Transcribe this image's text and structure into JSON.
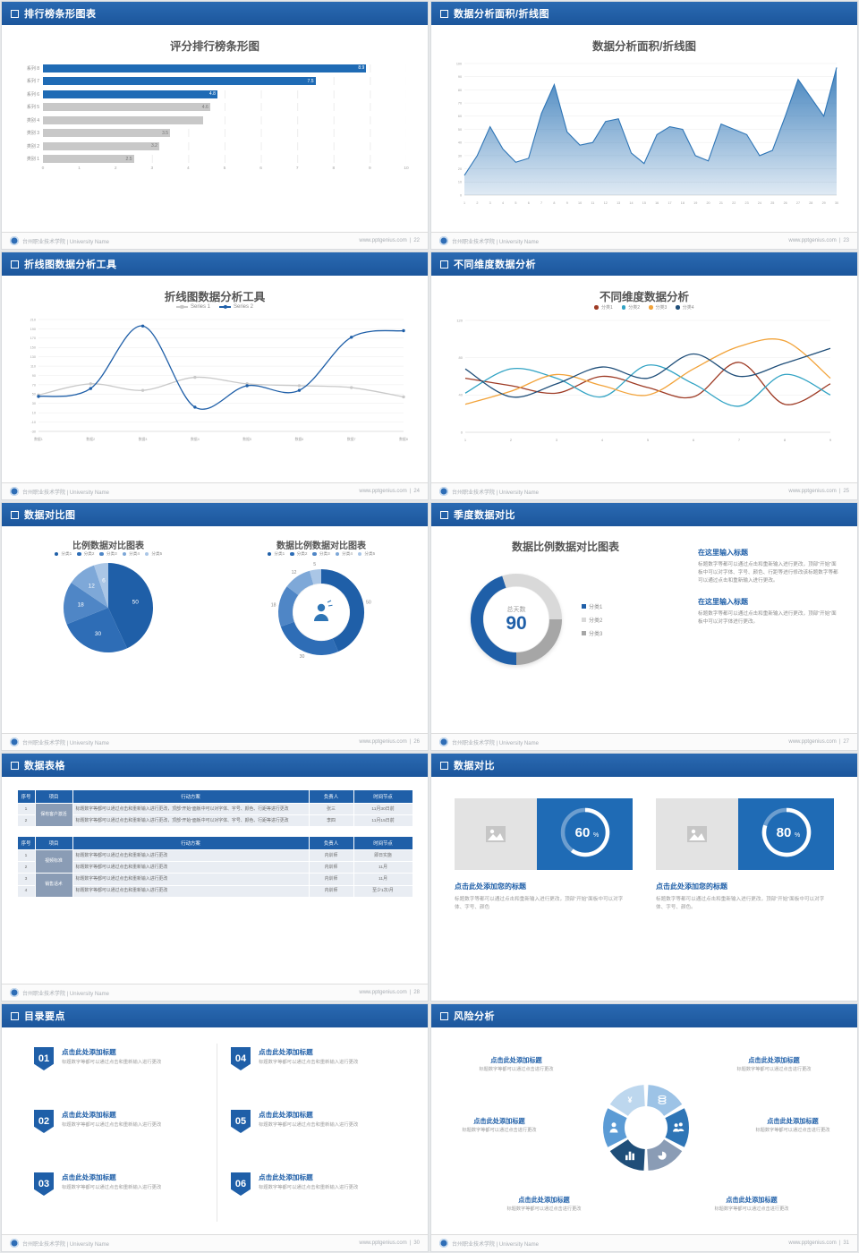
{
  "footer": {
    "school": "台州职业技术学院 | University Name",
    "site": "www.pptgenius.com",
    "divider": "|"
  },
  "slides": [
    {
      "header": "排行榜条形图表",
      "page": "22",
      "chart_data": {
        "type": "bar",
        "orientation": "horizontal",
        "title": "评分排行榜条形图",
        "categories": [
          "系列 8",
          "系列 7",
          "系列 6",
          "系列 5",
          "类别 4",
          "类别 3",
          "类别 2",
          "类别 1"
        ],
        "values": [
          8.9,
          7.5,
          4.8,
          4.6,
          4.4,
          3.5,
          3.2,
          2.5
        ],
        "value_labels": [
          "8.9",
          "7.5",
          "4.8",
          "4.6",
          "",
          "3.5",
          "3.2",
          "2.5"
        ],
        "colors": [
          "#1f6bb5",
          "#1f6bb5",
          "#1f6bb5",
          "#c8c8c8",
          "#c8c8c8",
          "#c8c8c8",
          "#c8c8c8",
          "#c8c8c8"
        ],
        "xlim": [
          0,
          10
        ],
        "xticks": [
          0,
          1,
          2,
          3,
          4,
          5,
          6,
          7,
          8,
          9,
          10
        ]
      }
    },
    {
      "header": "数据分析面积/折线图",
      "page": "23",
      "chart_data": {
        "type": "area",
        "title": "数据分析面积/折线图",
        "x": [
          1,
          2,
          3,
          4,
          5,
          6,
          7,
          8,
          9,
          10,
          11,
          12,
          13,
          14,
          15,
          16,
          17,
          18,
          19,
          20,
          21,
          22,
          23,
          24,
          25,
          26,
          27,
          28,
          29,
          30
        ],
        "values": [
          15,
          30,
          52,
          35,
          25,
          28,
          62,
          84,
          48,
          38,
          40,
          56,
          58,
          32,
          24,
          46,
          52,
          50,
          30,
          26,
          54,
          50,
          46,
          30,
          34,
          60,
          88,
          74,
          60,
          97
        ],
        "ylim": [
          0,
          100
        ],
        "yticks": [
          0,
          10,
          20,
          30,
          40,
          50,
          60,
          70,
          80,
          90,
          100
        ],
        "color": "#2e75b6"
      }
    },
    {
      "header": "折线图数据分析工具",
      "page": "24",
      "chart_data": {
        "type": "line",
        "title": "折线图数据分析工具",
        "categories": [
          "数据1",
          "数据2",
          "数据3",
          "数据4",
          "数据5",
          "数据6",
          "数据7",
          "数据8"
        ],
        "ylim": [
          -30,
          210
        ],
        "yticks": [
          210,
          190,
          170,
          150,
          130,
          110,
          90,
          70,
          50,
          30,
          10,
          -10,
          -30
        ],
        "series": [
          {
            "name": "Series 1",
            "color": "#c9c9c9",
            "values": [
              48,
              72,
              58,
              86,
              72,
              68,
              64,
              44
            ]
          },
          {
            "name": "Series 2",
            "color": "#1f5fa8",
            "values": [
              45,
              62,
              196,
              22,
              68,
              58,
              172,
              186
            ]
          }
        ]
      }
    },
    {
      "header": "不同维度数据分析",
      "page": "25",
      "chart_data": {
        "type": "line",
        "title": "不同维度数据分析",
        "categories": [
          "1",
          "2",
          "3",
          "4",
          "5",
          "6",
          "7",
          "8",
          "9"
        ],
        "ylim": [
          0,
          120
        ],
        "yticks": [
          0,
          40,
          80,
          120
        ],
        "series": [
          {
            "name": "分类1",
            "color": "#9e3b25",
            "values": [
              58,
              50,
              42,
              60,
              48,
              38,
              75,
              30,
              52
            ]
          },
          {
            "name": "分类2",
            "color": "#31a3c4",
            "values": [
              42,
              68,
              58,
              38,
              72,
              52,
              28,
              62,
              40
            ]
          },
          {
            "name": "分类3",
            "color": "#f2a33a",
            "values": [
              30,
              44,
              62,
              50,
              40,
              68,
              92,
              98,
              58
            ]
          },
          {
            "name": "分类4",
            "color": "#1f4e79",
            "values": [
              68,
              38,
              52,
              70,
              58,
              84,
              60,
              74,
              90
            ]
          }
        ]
      }
    },
    {
      "header": "数据对比图",
      "page": "26",
      "chart_data": [
        {
          "type": "pie",
          "title": "比例数据对比图表",
          "legend": [
            "分类1",
            "分类2",
            "分类3",
            "分类4",
            "分类5"
          ],
          "values": [
            50,
            30,
            18,
            12,
            6
          ],
          "colors": [
            "#1f5fa8",
            "#2e6db6",
            "#4f86c6",
            "#7ea8d8",
            "#aac6e6"
          ],
          "start": 0
        },
        {
          "type": "donut",
          "title": "数据比例数据对比图表",
          "legend": [
            "分类1",
            "分类2",
            "分类3",
            "分类4",
            "分类5"
          ],
          "values": [
            50,
            30,
            18,
            12,
            5
          ],
          "colors": [
            "#1f5fa8",
            "#2e6db6",
            "#4f86c6",
            "#7ea8d8",
            "#aac6e6"
          ],
          "start": 0
        }
      ]
    },
    {
      "header": "季度数据对比",
      "page": "27",
      "chart_data": {
        "type": "donut",
        "title": "数据比例数据对比图表",
        "center_label": "总天数",
        "center_value": "90",
        "values": [
          45,
          30,
          25
        ],
        "colors": [
          "#1f5fa8",
          "#d9d9d9",
          "#a6a6a6"
        ],
        "start": 180,
        "legend": [
          {
            "label": "分类1",
            "color": "#1f5fa8"
          },
          {
            "label": "分类2",
            "color": "#d9d9d9"
          },
          {
            "label": "分类3",
            "color": "#a6a6a6"
          }
        ]
      },
      "blocks": [
        {
          "heading": "在这里输入标题",
          "body": "标题数字等都可以通过点击和重新输入进行更改，顶部“开始”面板中可以对字体、字号、颜色、行距等进行修改该标题数字等都可以通过点击和重新输入进行更改。"
        },
        {
          "heading": "在这里输入标题",
          "body": "标题数字等都可以通过点击和重新输入进行更改，顶部“开始”面板中可以对字体进行更改。"
        }
      ]
    },
    {
      "header": "数据表格",
      "page": "28",
      "tables": [
        {
          "headers": [
            "序号",
            "项目",
            "行动方案",
            "负责人",
            "时间节点"
          ],
          "groups": [
            {
              "label": "保有客户激活",
              "rows": [
                [
                  "1",
                  "标题数字等都可以通过点击和重新输入进行更改，顶部“开始”面板中可以对字体、字号、颜色、行距等进行更改",
                  "张三",
                  "11月30日前"
                ],
                [
                  "2",
                  "标题数字等都可以通过点击和重新输入进行更改，顶部“开始”面板中可以对字体、字号、颜色、行距等进行更改",
                  "李四",
                  "11月15日前"
                ]
              ]
            }
          ]
        },
        {
          "headers": [
            "序号",
            "项目",
            "行动方案",
            "负责人",
            "时间节点"
          ],
          "groups": [
            {
              "label": "视频标准",
              "rows": [
                [
                  "1",
                  "标题数字等都可以通过点击和重新输入进行更改",
                  "内训师",
                  "即日实施"
                ],
                [
                  "2",
                  "标题数字等都可以通过点击和重新输入进行更改",
                  "内训师",
                  "11月"
                ]
              ]
            },
            {
              "label": "销售话术",
              "rows": [
                [
                  "3",
                  "标题数字等都可以通过点击和重新输入进行更改",
                  "内训师",
                  "11月"
                ],
                [
                  "4",
                  "标题数字等都可以通过点击和重新输入进行更改",
                  "内训师",
                  "至少1次/月"
                ]
              ]
            }
          ]
        }
      ]
    },
    {
      "header": "数据对比",
      "page": "29",
      "chart_data": {
        "type": "progress",
        "values": [
          60,
          80
        ],
        "unit": "%"
      },
      "panels": [
        {
          "title": "点击此处添加您的标题",
          "desc": "标题数字等都可以通过点击和重新输入进行更改，顶部“开始”面板中可以对字体、字号、颜色"
        },
        {
          "title": "点击此处添加您的标题",
          "desc": "标题数字等都可以通过点击和重新输入进行更改，顶部“开始”面板中可以对字体、字号、颜色。"
        }
      ]
    },
    {
      "header": "目录要点",
      "page": "30",
      "items": [
        {
          "num": "01",
          "title": "点击此处添加标题",
          "desc": "标题数字等都可以通过点击和重新输入进行更改"
        },
        {
          "num": "02",
          "title": "点击此处添加标题",
          "desc": "标题数字等都可以通过点击和重新输入进行更改"
        },
        {
          "num": "03",
          "title": "点击此处添加标题",
          "desc": "标题数字等都可以通过点击和重新输入进行更改"
        },
        {
          "num": "04",
          "title": "点击此处添加标题",
          "desc": "标题数字等都可以通过点击和重新输入进行更改"
        },
        {
          "num": "05",
          "title": "点击此处添加标题",
          "desc": "标题数字等都可以通过点击和重新输入进行更改"
        },
        {
          "num": "06",
          "title": "点击此处添加标题",
          "desc": "标题数字等都可以通过点击和重新输入进行更改"
        }
      ]
    },
    {
      "header": "风险分析",
      "page": "31",
      "labels": [
        {
          "title": "点击此处添加标题",
          "desc": "标题数字等都可以通过点击进行更改"
        },
        {
          "title": "点击此处添加标题",
          "desc": "标题数字等都可以通过点击进行更改"
        },
        {
          "title": "点击此处添加标题",
          "desc": "标题数字等都可以通过点击进行更改"
        },
        {
          "title": "点击此处添加标题",
          "desc": "标题数字等都可以通过点击进行更改"
        },
        {
          "title": "点击此处添加标题",
          "desc": "标题数字等都可以通过点击进行更改"
        },
        {
          "title": "点击此处添加标题",
          "desc": "标题数字等都可以通过点击进行更改"
        }
      ]
    }
  ]
}
